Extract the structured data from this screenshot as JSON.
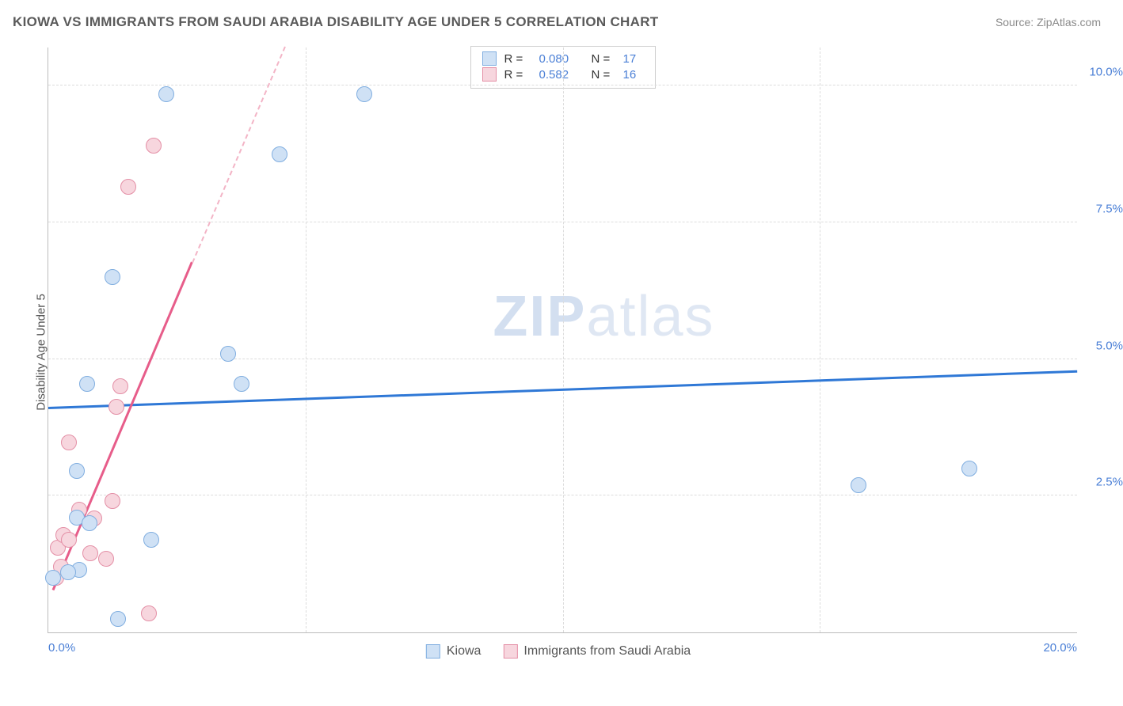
{
  "header": {
    "title": "KIOWA VS IMMIGRANTS FROM SAUDI ARABIA DISABILITY AGE UNDER 5 CORRELATION CHART",
    "source": "Source: ZipAtlas.com"
  },
  "watermark": {
    "part1": "ZIP",
    "part2": "atlas"
  },
  "axes": {
    "ylabel": "Disability Age Under 5",
    "xlim": [
      0,
      20
    ],
    "ylim": [
      0,
      10.7
    ],
    "xticks": [
      {
        "v": 0,
        "label": "0.0%",
        "align": "left"
      },
      {
        "v": 20,
        "label": "20.0%",
        "align": "right"
      }
    ],
    "yticks": [
      {
        "v": 2.5,
        "label": "2.5%"
      },
      {
        "v": 5.0,
        "label": "5.0%"
      },
      {
        "v": 7.5,
        "label": "7.5%"
      },
      {
        "v": 10.0,
        "label": "10.0%"
      }
    ],
    "grid_color": "#dcdcdc",
    "xgrid": [
      5,
      10,
      15
    ],
    "axis_color": "#bcbcbc"
  },
  "series": {
    "kiowa": {
      "label": "Kiowa",
      "color_fill": "#cfe1f5",
      "color_stroke": "#80aee0",
      "marker_radius": 10,
      "R": "0.080",
      "N": "17",
      "points": [
        [
          0.1,
          1.0
        ],
        [
          0.55,
          2.95
        ],
        [
          0.55,
          2.1
        ],
        [
          0.6,
          1.15
        ],
        [
          0.75,
          4.55
        ],
        [
          0.8,
          2.0
        ],
        [
          1.25,
          6.5
        ],
        [
          1.35,
          0.25
        ],
        [
          2.0,
          1.7
        ],
        [
          2.3,
          9.85
        ],
        [
          3.5,
          5.1
        ],
        [
          3.75,
          4.55
        ],
        [
          4.5,
          8.75
        ],
        [
          6.15,
          9.85
        ],
        [
          15.75,
          2.7
        ],
        [
          17.9,
          3.0
        ],
        [
          0.38,
          1.1
        ]
      ],
      "trend": {
        "x1": 0,
        "y1": 4.08,
        "x2": 20,
        "y2": 4.75,
        "color": "#2f78d6",
        "width": 3
      }
    },
    "saudi": {
      "label": "Immigrants from Saudi Arabia",
      "color_fill": "#f7d6de",
      "color_stroke": "#e48fa6",
      "marker_radius": 10,
      "R": "0.582",
      "N": "16",
      "points": [
        [
          0.15,
          1.0
        ],
        [
          0.18,
          1.55
        ],
        [
          0.25,
          1.2
        ],
        [
          0.3,
          1.78
        ],
        [
          0.4,
          1.7
        ],
        [
          0.4,
          3.48
        ],
        [
          0.6,
          2.25
        ],
        [
          0.82,
          1.45
        ],
        [
          0.9,
          2.08
        ],
        [
          1.12,
          1.35
        ],
        [
          1.25,
          2.4
        ],
        [
          1.32,
          4.12
        ],
        [
          1.4,
          4.5
        ],
        [
          1.55,
          8.15
        ],
        [
          1.95,
          0.35
        ],
        [
          2.05,
          8.9
        ]
      ],
      "trend": {
        "solid": {
          "x1": 0.1,
          "y1": 0.75,
          "x2": 2.8,
          "y2": 6.75,
          "color": "#e75d8a",
          "width": 3
        },
        "dash": {
          "x1": 2.8,
          "y1": 6.75,
          "x2": 4.6,
          "y2": 10.7,
          "color": "#f3b4c6",
          "width": 2
        }
      }
    }
  },
  "legend_top_labels": {
    "R": "R =",
    "N": "N ="
  },
  "colors": {
    "text_muted": "#555555",
    "tick_color": "#4a7fd6",
    "background": "#ffffff"
  }
}
